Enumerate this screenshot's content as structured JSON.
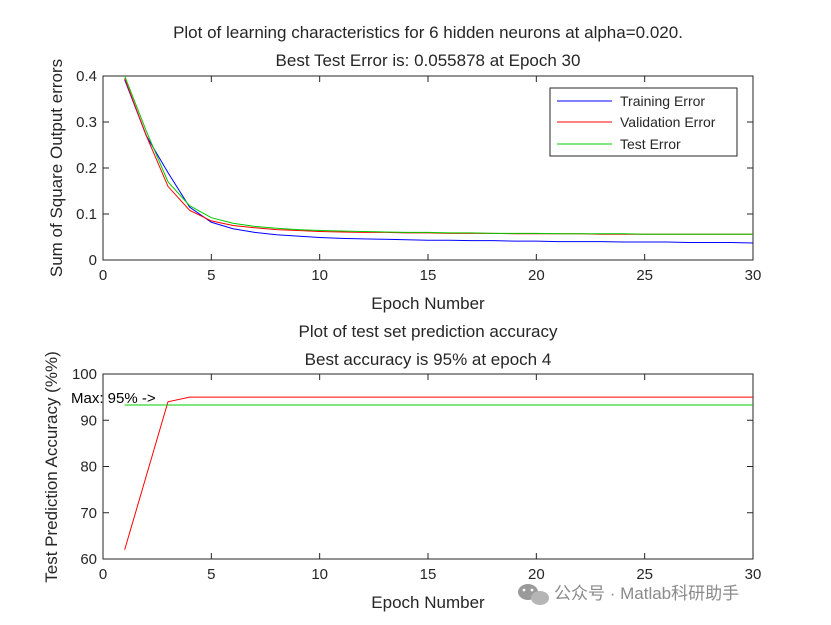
{
  "chart_data": [
    {
      "type": "line",
      "title": "Plot of learning characteristics for 6 hidden neurons at alpha=0.020.",
      "subtitle": "Best Test Error is: 0.055878 at Epoch 30",
      "xlabel": "Epoch Number",
      "ylabel": "Sum of Square Output errors",
      "xlim": [
        0,
        30
      ],
      "ylim": [
        0,
        0.4
      ],
      "xticks": [
        "0",
        "5",
        "10",
        "15",
        "20",
        "25",
        "30"
      ],
      "yticks": [
        "0",
        "0.1",
        "0.2",
        "0.3",
        "0.4"
      ],
      "grid": false,
      "legend_position": "top-right",
      "x": [
        1,
        2,
        3,
        4,
        5,
        6,
        7,
        8,
        9,
        10,
        11,
        12,
        13,
        14,
        15,
        16,
        17,
        18,
        19,
        20,
        21,
        22,
        23,
        24,
        25,
        26,
        27,
        28,
        29,
        30
      ],
      "series": [
        {
          "name": "Training Error",
          "color": "#0000ff",
          "values": [
            0.392,
            0.27,
            0.19,
            0.115,
            0.082,
            0.068,
            0.06,
            0.055,
            0.052,
            0.049,
            0.047,
            0.046,
            0.045,
            0.044,
            0.043,
            0.043,
            0.042,
            0.042,
            0.041,
            0.041,
            0.04,
            0.04,
            0.04,
            0.039,
            0.039,
            0.039,
            0.038,
            0.038,
            0.038,
            0.037
          ]
        },
        {
          "name": "Validation Error",
          "color": "#ff0000",
          "values": [
            0.395,
            0.27,
            0.16,
            0.108,
            0.085,
            0.075,
            0.07,
            0.066,
            0.064,
            0.062,
            0.061,
            0.06,
            0.06,
            0.059,
            0.059,
            0.058,
            0.058,
            0.058,
            0.057,
            0.057,
            0.057,
            0.057,
            0.056,
            0.056,
            0.056,
            0.056,
            0.056,
            0.056,
            0.056,
            0.056
          ]
        },
        {
          "name": "Test Error",
          "color": "#00cc00",
          "values": [
            0.4,
            0.28,
            0.17,
            0.118,
            0.092,
            0.08,
            0.073,
            0.069,
            0.066,
            0.064,
            0.063,
            0.062,
            0.061,
            0.06,
            0.06,
            0.059,
            0.059,
            0.058,
            0.058,
            0.058,
            0.057,
            0.057,
            0.057,
            0.057,
            0.056,
            0.056,
            0.056,
            0.056,
            0.056,
            0.056
          ]
        }
      ]
    },
    {
      "type": "line",
      "title": "Plot of test set prediction accuracy",
      "subtitle": "Best accuracy is 95% at epoch 4",
      "xlabel": "Epoch Number",
      "ylabel": "Test Prediction Accuracy (%%)",
      "xlim": [
        0,
        30
      ],
      "ylim": [
        60,
        100
      ],
      "xticks": [
        "0",
        "5",
        "10",
        "15",
        "20",
        "25",
        "30"
      ],
      "yticks": [
        "60",
        "70",
        "80",
        "90",
        "100"
      ],
      "grid": false,
      "annotation": {
        "text": "Max: 95% ->",
        "x": 4,
        "y": 95
      },
      "x": [
        1,
        2,
        3,
        4,
        5,
        6,
        7,
        8,
        9,
        10,
        11,
        12,
        13,
        14,
        15,
        16,
        17,
        18,
        19,
        20,
        21,
        22,
        23,
        24,
        25,
        26,
        27,
        28,
        29,
        30
      ],
      "series": [
        {
          "color": "#ff0000",
          "values": [
            62,
            78,
            94,
            95,
            95,
            95,
            95,
            95,
            95,
            95,
            95,
            95,
            95,
            95,
            95,
            95,
            95,
            95,
            95,
            95,
            95,
            95,
            95,
            95,
            95,
            95,
            95,
            95,
            95,
            95
          ]
        },
        {
          "color": "#00cc00",
          "values": [
            93.3,
            93.3,
            93.3,
            93.3,
            93.3,
            93.3,
            93.3,
            93.3,
            93.3,
            93.3,
            93.3,
            93.3,
            93.3,
            93.3,
            93.3,
            93.3,
            93.3,
            93.3,
            93.3,
            93.3,
            93.3,
            93.3,
            93.3,
            93.3,
            93.3,
            93.3,
            93.3,
            93.3,
            93.3,
            93.3
          ]
        }
      ]
    }
  ],
  "watermark": {
    "icon": "wechat-icon",
    "text": "公众号 · Matlab科研助手"
  }
}
